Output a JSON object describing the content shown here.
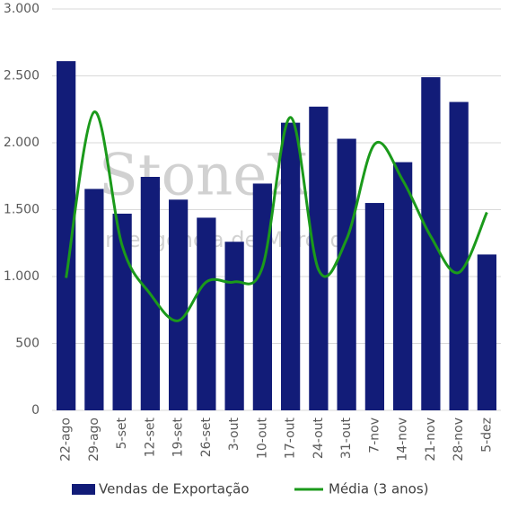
{
  "chart_data": {
    "type": "bar",
    "watermark": [
      "StoneX",
      "Inteligência de Mercado"
    ],
    "categories": [
      "22-ago",
      "29-ago",
      "5-set",
      "12-set",
      "19-set",
      "26-set",
      "3-out",
      "10-out",
      "17-out",
      "24-out",
      "31-out",
      "7-nov",
      "14-nov",
      "21-nov",
      "28-nov",
      "5-dez"
    ],
    "series": [
      {
        "name": "Vendas de Exportação",
        "type": "bar",
        "color": "#121c78",
        "values": [
          2610,
          1655,
          1470,
          1745,
          1575,
          1440,
          1260,
          1695,
          2150,
          2270,
          2030,
          1550,
          1855,
          2490,
          2305,
          1165
        ]
      },
      {
        "name": "Média (3 anos)",
        "type": "line",
        "color": "#1b9a1b",
        "values": [
          990,
          2230,
          1230,
          870,
          670,
          960,
          960,
          1070,
          2190,
          1050,
          1280,
          1990,
          1720,
          1300,
          1030,
          1480
        ]
      }
    ],
    "ylim": [
      0,
      3000
    ],
    "yticks": [
      0,
      500,
      {
        "value": 1000,
        "label": "1.000"
      },
      {
        "value": 1500,
        "label": "1.500"
      },
      {
        "value": 2000,
        "label": "2.000"
      },
      {
        "value": 2500,
        "label": "2.500"
      },
      {
        "value": 3000,
        "label": "3.000"
      }
    ],
    "grid": true
  }
}
